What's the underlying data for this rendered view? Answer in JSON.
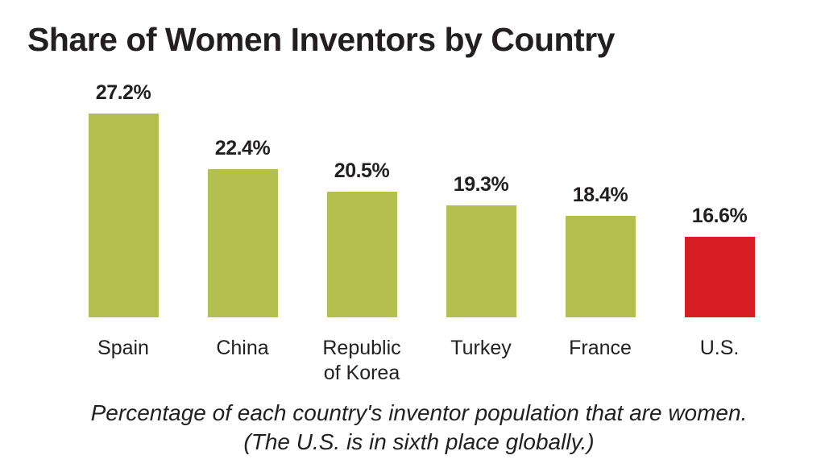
{
  "title": "Share of Women Inventors by Country",
  "caption": {
    "line1": "Percentage of each country's inventor population that are women.",
    "line2": "(The U.S. is in sixth place globally.)"
  },
  "colors": {
    "default_bar": "#b3bf4e",
    "highlight_bar": "#d71e25",
    "text": "#231f20"
  },
  "bars": [
    {
      "label": "Spain",
      "value_label": "27.2%"
    },
    {
      "label": "China",
      "value_label": "22.4%"
    },
    {
      "label": "Republic of Korea",
      "label_line1": "Republic",
      "label_line2": "of Korea",
      "value_label": "20.5%"
    },
    {
      "label": "Turkey",
      "value_label": "19.3%"
    },
    {
      "label": "France",
      "value_label": "18.4%"
    },
    {
      "label": "U.S.",
      "value_label": "16.6%"
    }
  ],
  "chart_data": {
    "type": "bar",
    "title": "Share of Women Inventors by Country",
    "subtitle": "Percentage of each country's inventor population that are women. (The U.S. is in sixth place globally.)",
    "categories": [
      "Spain",
      "China",
      "Republic of Korea",
      "Turkey",
      "France",
      "U.S."
    ],
    "values": [
      27.2,
      22.4,
      20.5,
      19.3,
      18.4,
      16.6
    ],
    "value_format": "percent",
    "highlight": {
      "category": "U.S.",
      "color": "#d71e25"
    },
    "bar_color": "#b3bf4e",
    "xlabel": "",
    "ylabel": "",
    "y_axis_visible": false,
    "grid": false,
    "legend": null,
    "data_labels": true
  }
}
